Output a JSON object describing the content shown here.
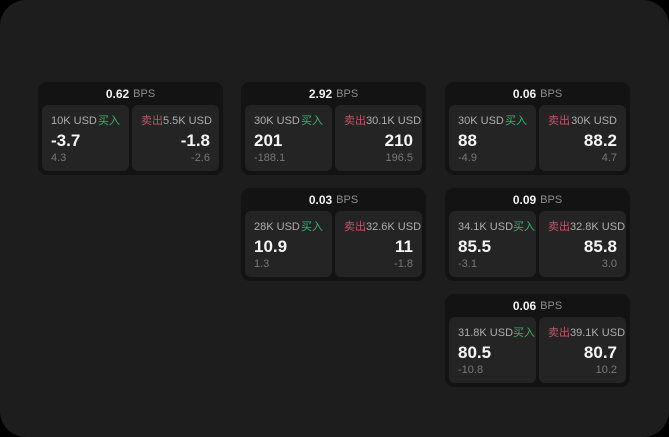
{
  "labels": {
    "unit": "BPS",
    "buy": "买入",
    "sell": "卖出"
  },
  "colors": {
    "page_background": "#000000",
    "panel_background": "#1d1d1d",
    "card_background": "#131313",
    "tile_background": "#242424",
    "buy_green": "#3fae6f",
    "sell_red": "#c05568",
    "value_white": "#f5f5f5",
    "muted_gray": "#777777"
  },
  "cards": [
    {
      "bps": "0.62",
      "buy": {
        "amount": "10K USD",
        "value": "-3.7",
        "delta": "4.3"
      },
      "sell": {
        "amount": "5.5K USD",
        "value": "-1.8",
        "delta": "-2.6"
      }
    },
    {
      "bps": "2.92",
      "buy": {
        "amount": "30K USD",
        "value": "201",
        "delta": "-188.1"
      },
      "sell": {
        "amount": "30.1K USD",
        "value": "210",
        "delta": "196.5"
      }
    },
    {
      "bps": "0.06",
      "buy": {
        "amount": "30K USD",
        "value": "88",
        "delta": "-4.9"
      },
      "sell": {
        "amount": "30K USD",
        "value": "88.2",
        "delta": "4.7"
      }
    },
    {
      "bps": "0.03",
      "buy": {
        "amount": "28K USD",
        "value": "10.9",
        "delta": "1.3"
      },
      "sell": {
        "amount": "32.6K USD",
        "value": "11",
        "delta": "-1.8"
      }
    },
    {
      "bps": "0.09",
      "buy": {
        "amount": "34.1K USD",
        "value": "85.5",
        "delta": "-3.1"
      },
      "sell": {
        "amount": "32.8K USD",
        "value": "85.8",
        "delta": "3.0"
      }
    },
    {
      "bps": "0.06",
      "buy": {
        "amount": "31.8K USD",
        "value": "80.5",
        "delta": "-10.8"
      },
      "sell": {
        "amount": "39.1K USD",
        "value": "80.7",
        "delta": "10.2"
      }
    }
  ]
}
